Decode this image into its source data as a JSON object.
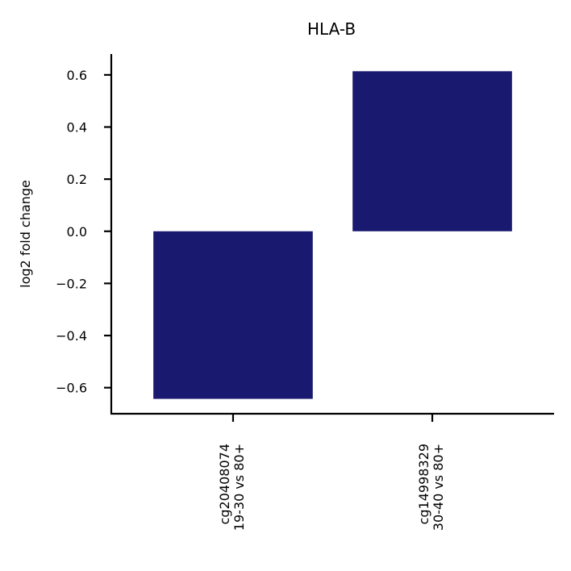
{
  "chart_data": {
    "type": "bar",
    "title": "HLA-B",
    "xlabel": "",
    "ylabel": "log2 fold change",
    "categories": [
      [
        "cg20408074",
        "19-30 vs 80+"
      ],
      [
        "cg14998329",
        "30-40 vs 80+"
      ]
    ],
    "values": [
      -0.643,
      0.614
    ],
    "ylim": [
      -0.7,
      0.68
    ],
    "yticks": [
      -0.6,
      -0.4,
      -0.2,
      0.0,
      0.2,
      0.4,
      0.6
    ],
    "ytick_labels": [
      "−0.6",
      "−0.4",
      "−0.2",
      "0.0",
      "0.2",
      "0.4",
      "0.6"
    ],
    "bar_color": "#191970",
    "grid": false,
    "legend": false
  }
}
